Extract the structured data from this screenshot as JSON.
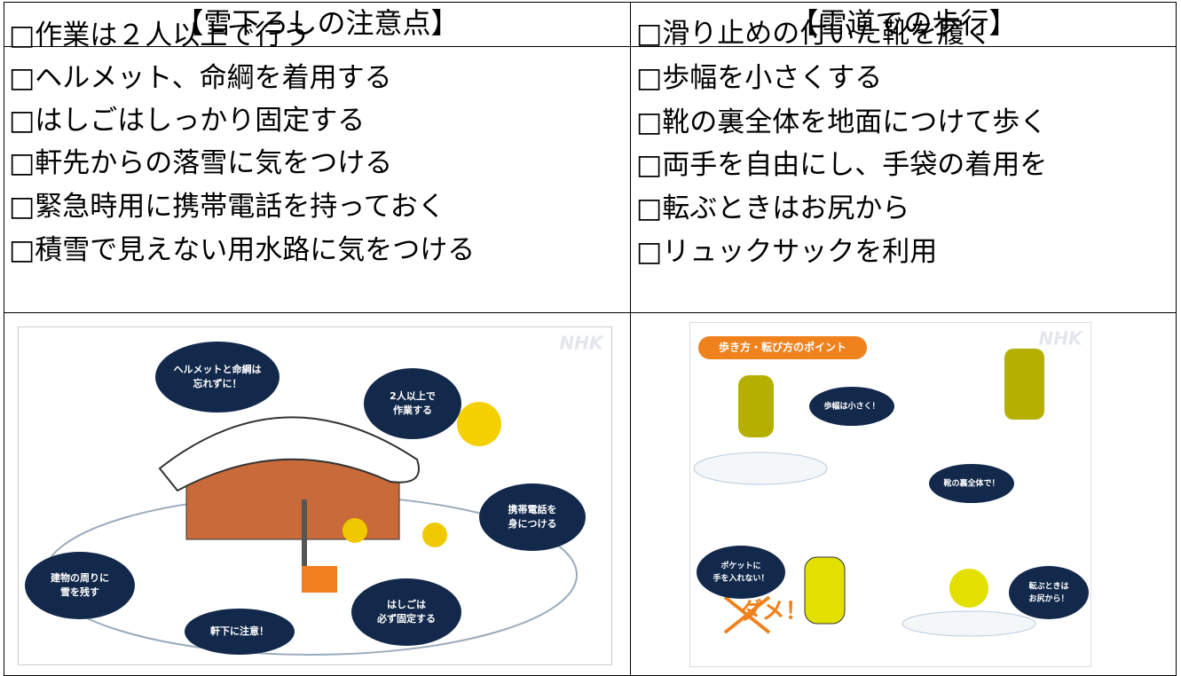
{
  "columns": [
    {
      "header": "【雪下ろしの注意点】",
      "items": [
        "□作業は２人以上で行う",
        "□ヘルメット、命綱を着用する",
        "□はしごはしっかり固定する",
        "□軒先からの落雪に気をつける",
        "□緊急時用に携帯電話を持っておく",
        "□積雪で見えない用水路に気をつける"
      ],
      "illustration": {
        "watermark": "NHK",
        "bubbles": [
          [
            "ヘルメットと命綱は",
            "忘れずに！"
          ],
          [
            "2人以上で",
            "作業する"
          ],
          [
            "携帯電話を",
            "身につける"
          ],
          [
            "建物の周りに",
            "雪を残す"
          ],
          [
            "軒下に注意！"
          ],
          [
            "はしごは",
            "必ず固定する"
          ]
        ]
      }
    },
    {
      "header": "【雪道での歩行】",
      "items": [
        "□滑り止めの付いた靴を履く",
        "□歩幅を小さくする",
        "□靴の裏全体を地面につけて歩く",
        "□両手を自由にし、手袋の着用を",
        "□転ぶときはお尻から",
        "□リュックサックを利用"
      ],
      "illustration": {
        "watermark": "NHK",
        "title": "歩き方・転び方のポイント",
        "bubbles": [
          [
            "歩幅は小さく！"
          ],
          [
            "靴の裏全体で！"
          ],
          [
            "ポケットに",
            "手を入れない！"
          ],
          [
            "転ぶときは",
            "お尻から！"
          ]
        ],
        "warning": "ダメ！"
      }
    }
  ]
}
